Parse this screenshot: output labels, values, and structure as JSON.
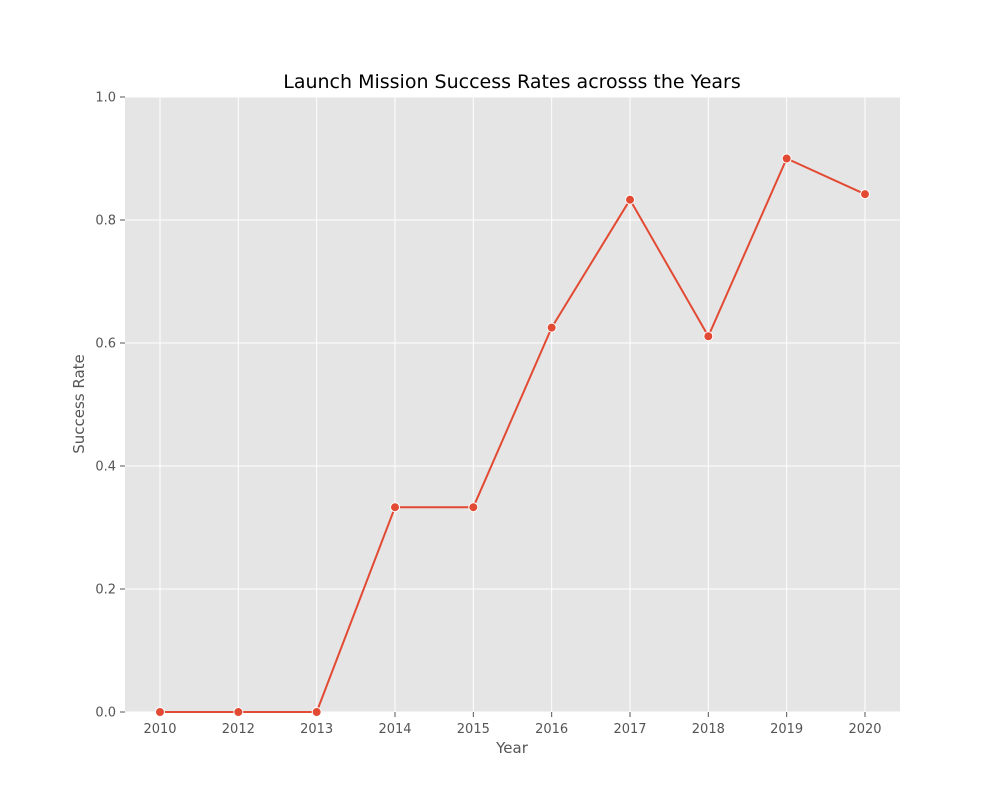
{
  "chart_data": {
    "type": "line",
    "title": "Launch Mission Success Rates acrosss the Years",
    "xlabel": "Year",
    "ylabel": "Success Rate",
    "categories": [
      "2010",
      "2012",
      "2013",
      "2014",
      "2015",
      "2016",
      "2017",
      "2018",
      "2019",
      "2020"
    ],
    "series": [
      {
        "values": [
          0.0,
          0.0,
          0.0,
          0.333,
          0.333,
          0.625,
          0.833,
          0.611,
          0.9,
          0.842
        ]
      }
    ],
    "ylim": [
      0,
      1.0
    ],
    "yticks": [
      "0.0",
      "0.2",
      "0.4",
      "0.6",
      "0.8",
      "1.0"
    ],
    "grid": true,
    "colors": {
      "line": "#E24A33",
      "plot_background": "#E5E5E5",
      "grid": "#FFFFFF"
    }
  }
}
